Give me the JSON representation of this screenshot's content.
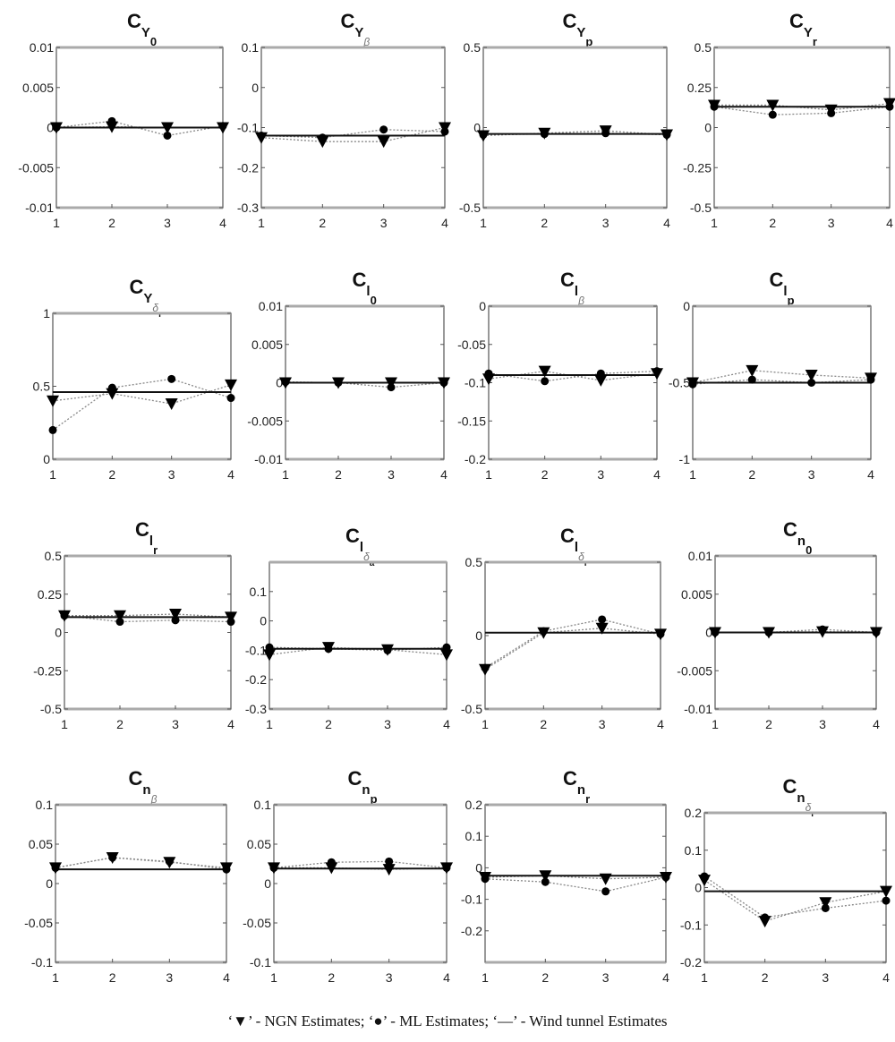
{
  "chart_data": [
    {
      "type": "line",
      "title": {
        "main": "C",
        "sub": "Y",
        "subsub": "0"
      },
      "x": [
        1,
        2,
        3,
        4
      ],
      "xticks": [
        1,
        2,
        3,
        4
      ],
      "ylim": [
        -0.01,
        0.01
      ],
      "yticks": [
        -0.01,
        -0.005,
        0,
        0.005,
        0.01
      ],
      "wind_tunnel": 0,
      "series": [
        {
          "name": "NGN Estimates",
          "marker": "triangle-down",
          "values": [
            0,
            0.0001,
            0,
            0
          ]
        },
        {
          "name": "ML Estimates",
          "marker": "circle",
          "values": [
            0,
            0.0008,
            -0.001,
            0.0002
          ]
        }
      ]
    },
    {
      "type": "line",
      "title": {
        "main": "C",
        "sub": "Y",
        "subsub": "β"
      },
      "x": [
        1,
        2,
        3,
        4
      ],
      "xticks": [
        1,
        2,
        3,
        4
      ],
      "ylim": [
        -0.3,
        0.1
      ],
      "yticks": [
        -0.3,
        -0.2,
        -0.1,
        0,
        0.1
      ],
      "wind_tunnel": -0.12,
      "series": [
        {
          "name": "NGN Estimates",
          "marker": "triangle-down",
          "values": [
            -0.125,
            -0.135,
            -0.135,
            -0.1
          ]
        },
        {
          "name": "ML Estimates",
          "marker": "circle",
          "values": [
            -0.12,
            -0.125,
            -0.105,
            -0.11
          ]
        }
      ]
    },
    {
      "type": "line",
      "title": {
        "main": "C",
        "sub": "Y",
        "subsub": "p"
      },
      "x": [
        1,
        2,
        3,
        4
      ],
      "xticks": [
        1,
        2,
        3,
        4
      ],
      "ylim": [
        -0.5,
        0.5
      ],
      "yticks": [
        -0.5,
        0,
        0.5
      ],
      "wind_tunnel": -0.04,
      "series": [
        {
          "name": "NGN Estimates",
          "marker": "triangle-down",
          "values": [
            -0.05,
            -0.035,
            -0.02,
            -0.045
          ]
        },
        {
          "name": "ML Estimates",
          "marker": "circle",
          "values": [
            -0.045,
            -0.04,
            -0.035,
            -0.045
          ]
        }
      ]
    },
    {
      "type": "line",
      "title": {
        "main": "C",
        "sub": "Y",
        "subsub": "r"
      },
      "x": [
        1,
        2,
        3,
        4
      ],
      "xticks": [
        1,
        2,
        3,
        4
      ],
      "ylim": [
        -0.5,
        0.5
      ],
      "yticks": [
        -0.5,
        -0.25,
        0,
        0.25,
        0.5
      ],
      "wind_tunnel": 0.13,
      "series": [
        {
          "name": "NGN Estimates",
          "marker": "triangle-down",
          "values": [
            0.14,
            0.14,
            0.11,
            0.15
          ]
        },
        {
          "name": "ML Estimates",
          "marker": "circle",
          "values": [
            0.13,
            0.08,
            0.09,
            0.13
          ]
        }
      ]
    },
    {
      "type": "line",
      "title": {
        "main": "C",
        "sub": "Y",
        "subsub": "δ",
        "subsubsub": "r"
      },
      "x": [
        1,
        2,
        3,
        4
      ],
      "xticks": [
        1,
        2,
        3,
        4
      ],
      "ylim": [
        0,
        1
      ],
      "yticks": [
        0,
        0.5,
        1
      ],
      "wind_tunnel": 0.46,
      "series": [
        {
          "name": "NGN Estimates",
          "marker": "triangle-down",
          "values": [
            0.4,
            0.45,
            0.38,
            0.51
          ]
        },
        {
          "name": "ML Estimates",
          "marker": "circle",
          "values": [
            0.2,
            0.49,
            0.55,
            0.42
          ]
        }
      ]
    },
    {
      "type": "line",
      "title": {
        "main": "C",
        "sub": "l",
        "subsub": "0"
      },
      "x": [
        1,
        2,
        3,
        4
      ],
      "xticks": [
        1,
        2,
        3,
        4
      ],
      "ylim": [
        -0.01,
        0.01
      ],
      "yticks": [
        -0.01,
        -0.005,
        0,
        0.005,
        0.01
      ],
      "wind_tunnel": 0,
      "series": [
        {
          "name": "NGN Estimates",
          "marker": "triangle-down",
          "values": [
            0,
            0,
            0,
            0
          ]
        },
        {
          "name": "ML Estimates",
          "marker": "circle",
          "values": [
            0.0001,
            0,
            -0.0006,
            0
          ]
        }
      ]
    },
    {
      "type": "line",
      "title": {
        "main": "C",
        "sub": "l",
        "subsub": "β"
      },
      "x": [
        1,
        2,
        3,
        4
      ],
      "xticks": [
        1,
        2,
        3,
        4
      ],
      "ylim": [
        -0.2,
        0
      ],
      "yticks": [
        -0.2,
        -0.15,
        -0.1,
        -0.05,
        0
      ],
      "wind_tunnel": -0.09,
      "series": [
        {
          "name": "NGN Estimates",
          "marker": "triangle-down",
          "values": [
            -0.095,
            -0.085,
            -0.097,
            -0.088
          ]
        },
        {
          "name": "ML Estimates",
          "marker": "circle",
          "values": [
            -0.088,
            -0.098,
            -0.088,
            -0.085
          ]
        }
      ]
    },
    {
      "type": "line",
      "title": {
        "main": "C",
        "sub": "l",
        "subsub": "p"
      },
      "x": [
        1,
        2,
        3,
        4
      ],
      "xticks": [
        1,
        2,
        3,
        4
      ],
      "ylim": [
        -1,
        0
      ],
      "yticks": [
        -1,
        -0.5,
        0
      ],
      "wind_tunnel": -0.5,
      "series": [
        {
          "name": "NGN Estimates",
          "marker": "triangle-down",
          "values": [
            -0.5,
            -0.42,
            -0.45,
            -0.47
          ]
        },
        {
          "name": "ML Estimates",
          "marker": "circle",
          "values": [
            -0.51,
            -0.48,
            -0.5,
            -0.48
          ]
        }
      ]
    },
    {
      "type": "line",
      "title": {
        "main": "C",
        "sub": "l",
        "subsub": "r"
      },
      "x": [
        1,
        2,
        3,
        4
      ],
      "xticks": [
        1,
        2,
        3,
        4
      ],
      "ylim": [
        -0.5,
        0.5
      ],
      "yticks": [
        -0.5,
        -0.25,
        0,
        0.25,
        0.5
      ],
      "wind_tunnel": 0.1,
      "series": [
        {
          "name": "NGN Estimates",
          "marker": "triangle-down",
          "values": [
            0.11,
            0.11,
            0.12,
            0.1
          ]
        },
        {
          "name": "ML Estimates",
          "marker": "circle",
          "values": [
            0.11,
            0.07,
            0.08,
            0.07
          ]
        }
      ]
    },
    {
      "type": "line",
      "title": {
        "main": "C",
        "sub": "l",
        "subsub": "δ",
        "subsubsub": "a"
      },
      "x": [
        1,
        2,
        3,
        4
      ],
      "xticks": [
        1,
        2,
        3,
        4
      ],
      "ylim": [
        -0.3,
        0.2
      ],
      "yticks": [
        -0.3,
        -0.2,
        -0.1,
        0,
        0.1
      ],
      "wind_tunnel": -0.095,
      "series": [
        {
          "name": "NGN Estimates",
          "marker": "triangle-down",
          "values": [
            -0.115,
            -0.09,
            -0.098,
            -0.115
          ]
        },
        {
          "name": "ML Estimates",
          "marker": "circle",
          "values": [
            -0.09,
            -0.095,
            -0.1,
            -0.09
          ]
        }
      ]
    },
    {
      "type": "line",
      "title": {
        "main": "C",
        "sub": "l",
        "subsub": "δ",
        "subsubsub": "r"
      },
      "x": [
        1,
        2,
        3,
        4
      ],
      "xticks": [
        1,
        2,
        3,
        4
      ],
      "ylim": [
        -0.5,
        0.5
      ],
      "yticks": [
        -0.5,
        0,
        0.5
      ],
      "wind_tunnel": 0.02,
      "series": [
        {
          "name": "NGN Estimates",
          "marker": "triangle-down",
          "values": [
            -0.23,
            0.02,
            0.05,
            0.01
          ]
        },
        {
          "name": "ML Estimates",
          "marker": "circle",
          "values": [
            -0.22,
            0.03,
            0.11,
            0.01
          ]
        }
      ]
    },
    {
      "type": "line",
      "title": {
        "main": "C",
        "sub": "n",
        "subsub": "0"
      },
      "x": [
        1,
        2,
        3,
        4
      ],
      "xticks": [
        1,
        2,
        3,
        4
      ],
      "ylim": [
        -0.01,
        0.01
      ],
      "yticks": [
        -0.01,
        -0.005,
        0,
        0.005,
        0.01
      ],
      "wind_tunnel": 0,
      "series": [
        {
          "name": "NGN Estimates",
          "marker": "triangle-down",
          "values": [
            0,
            0,
            0.0001,
            0
          ]
        },
        {
          "name": "ML Estimates",
          "marker": "circle",
          "values": [
            0,
            0,
            0.0004,
            0
          ]
        }
      ]
    },
    {
      "type": "line",
      "title": {
        "main": "C",
        "sub": "n",
        "subsub": "β"
      },
      "x": [
        1,
        2,
        3,
        4
      ],
      "xticks": [
        1,
        2,
        3,
        4
      ],
      "ylim": [
        -0.1,
        0.1
      ],
      "yticks": [
        -0.1,
        -0.05,
        0,
        0.05,
        0.1
      ],
      "wind_tunnel": 0.018,
      "series": [
        {
          "name": "NGN Estimates",
          "marker": "triangle-down",
          "values": [
            0.02,
            0.033,
            0.027,
            0.02
          ]
        },
        {
          "name": "ML Estimates",
          "marker": "circle",
          "values": [
            0.02,
            0.033,
            0.028,
            0.018
          ]
        }
      ]
    },
    {
      "type": "line",
      "title": {
        "main": "C",
        "sub": "n",
        "subsub": "p"
      },
      "x": [
        1,
        2,
        3,
        4
      ],
      "xticks": [
        1,
        2,
        3,
        4
      ],
      "ylim": [
        -0.1,
        0.1
      ],
      "yticks": [
        -0.1,
        -0.05,
        0,
        0.05,
        0.1
      ],
      "wind_tunnel": 0.019,
      "series": [
        {
          "name": "NGN Estimates",
          "marker": "triangle-down",
          "values": [
            0.02,
            0.02,
            0.018,
            0.02
          ]
        },
        {
          "name": "ML Estimates",
          "marker": "circle",
          "values": [
            0.02,
            0.027,
            0.028,
            0.02
          ]
        }
      ]
    },
    {
      "type": "line",
      "title": {
        "main": "C",
        "sub": "n",
        "subsub": "r"
      },
      "x": [
        1,
        2,
        3,
        4
      ],
      "xticks": [
        1,
        2,
        3,
        4
      ],
      "ylim": [
        -0.3,
        0.2
      ],
      "yticks": [
        -0.2,
        -0.1,
        0,
        0.1,
        0.2
      ],
      "wind_tunnel": -0.025,
      "series": [
        {
          "name": "NGN Estimates",
          "marker": "triangle-down",
          "values": [
            -0.03,
            -0.025,
            -0.035,
            -0.03
          ]
        },
        {
          "name": "ML Estimates",
          "marker": "circle",
          "values": [
            -0.035,
            -0.045,
            -0.075,
            -0.03
          ]
        }
      ]
    },
    {
      "type": "line",
      "title": {
        "main": "C",
        "sub": "n",
        "subsub": "δ",
        "subsubsub": "r"
      },
      "x": [
        1,
        2,
        3,
        4
      ],
      "xticks": [
        1,
        2,
        3,
        4
      ],
      "ylim": [
        -0.2,
        0.2
      ],
      "yticks": [
        -0.2,
        -0.1,
        0,
        0.1,
        0.2
      ],
      "wind_tunnel": -0.01,
      "series": [
        {
          "name": "NGN Estimates",
          "marker": "triangle-down",
          "values": [
            0.02,
            -0.09,
            -0.04,
            -0.01
          ]
        },
        {
          "name": "ML Estimates",
          "marker": "circle",
          "values": [
            0.03,
            -0.08,
            -0.055,
            -0.035
          ]
        }
      ]
    }
  ],
  "legend": {
    "text": "‘▼’ - NGN Estimates; ‘●’ - ML Estimates; ‘—’ - Wind tunnel Estimates",
    "placement": "bottom"
  },
  "colors": {
    "markers": "#000000",
    "series_lines": "#888888",
    "wind_tunnel_line": "#111111",
    "axes": "#555555"
  }
}
